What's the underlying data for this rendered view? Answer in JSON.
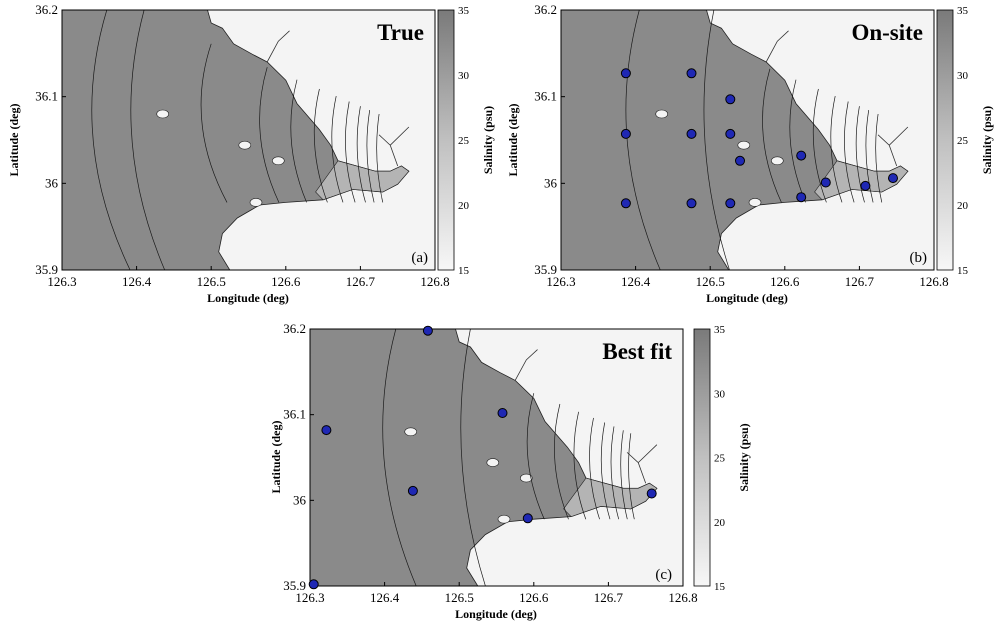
{
  "colors": {
    "sea": "#8a8a8a",
    "estuary": "#b4b4b4",
    "land": "#f4f4f4",
    "site": "#1f28b4",
    "contour": "#1a1a1a"
  },
  "common": {
    "xlabel": "Longitude (deg)",
    "ylabel": "Latitude (deg)",
    "colorbar_label": "Salinity (psu)",
    "x_ticks": [
      "126.3",
      "126.4",
      "126.5",
      "126.6",
      "126.7",
      "126.8"
    ],
    "y_ticks": [
      "35.9",
      "36",
      "36.1",
      "36.2"
    ],
    "cb_ticks": [
      "15",
      "20",
      "25",
      "30",
      "35"
    ],
    "lon_range": [
      126.3,
      126.8
    ],
    "lat_range": [
      35.9,
      36.2
    ],
    "salinity_range": [
      15,
      35
    ],
    "colormap": "grayscale"
  },
  "panels": [
    {
      "title": "True",
      "label": "(a)",
      "sites": []
    },
    {
      "title": "On-site",
      "label": "(b)",
      "sites": [
        {
          "lon": 126.387,
          "lat": 36.127
        },
        {
          "lon": 126.475,
          "lat": 36.127
        },
        {
          "lon": 126.527,
          "lat": 36.097
        },
        {
          "lon": 126.387,
          "lat": 36.057
        },
        {
          "lon": 126.475,
          "lat": 36.057
        },
        {
          "lon": 126.527,
          "lat": 36.057
        },
        {
          "lon": 126.54,
          "lat": 36.026
        },
        {
          "lon": 126.622,
          "lat": 36.032
        },
        {
          "lon": 126.655,
          "lat": 36.001
        },
        {
          "lon": 126.708,
          "lat": 35.997
        },
        {
          "lon": 126.745,
          "lat": 36.006
        },
        {
          "lon": 126.387,
          "lat": 35.977
        },
        {
          "lon": 126.475,
          "lat": 35.977
        },
        {
          "lon": 126.527,
          "lat": 35.977
        },
        {
          "lon": 126.622,
          "lat": 35.984
        }
      ]
    },
    {
      "title": "Best fit",
      "label": "(c)",
      "sites": [
        {
          "lon": 126.458,
          "lat": 36.198
        },
        {
          "lon": 126.322,
          "lat": 36.082
        },
        {
          "lon": 126.558,
          "lat": 36.102
        },
        {
          "lon": 126.438,
          "lat": 36.011
        },
        {
          "lon": 126.758,
          "lat": 36.008
        },
        {
          "lon": 126.592,
          "lat": 35.979
        },
        {
          "lon": 126.305,
          "lat": 35.902
        }
      ]
    }
  ]
}
